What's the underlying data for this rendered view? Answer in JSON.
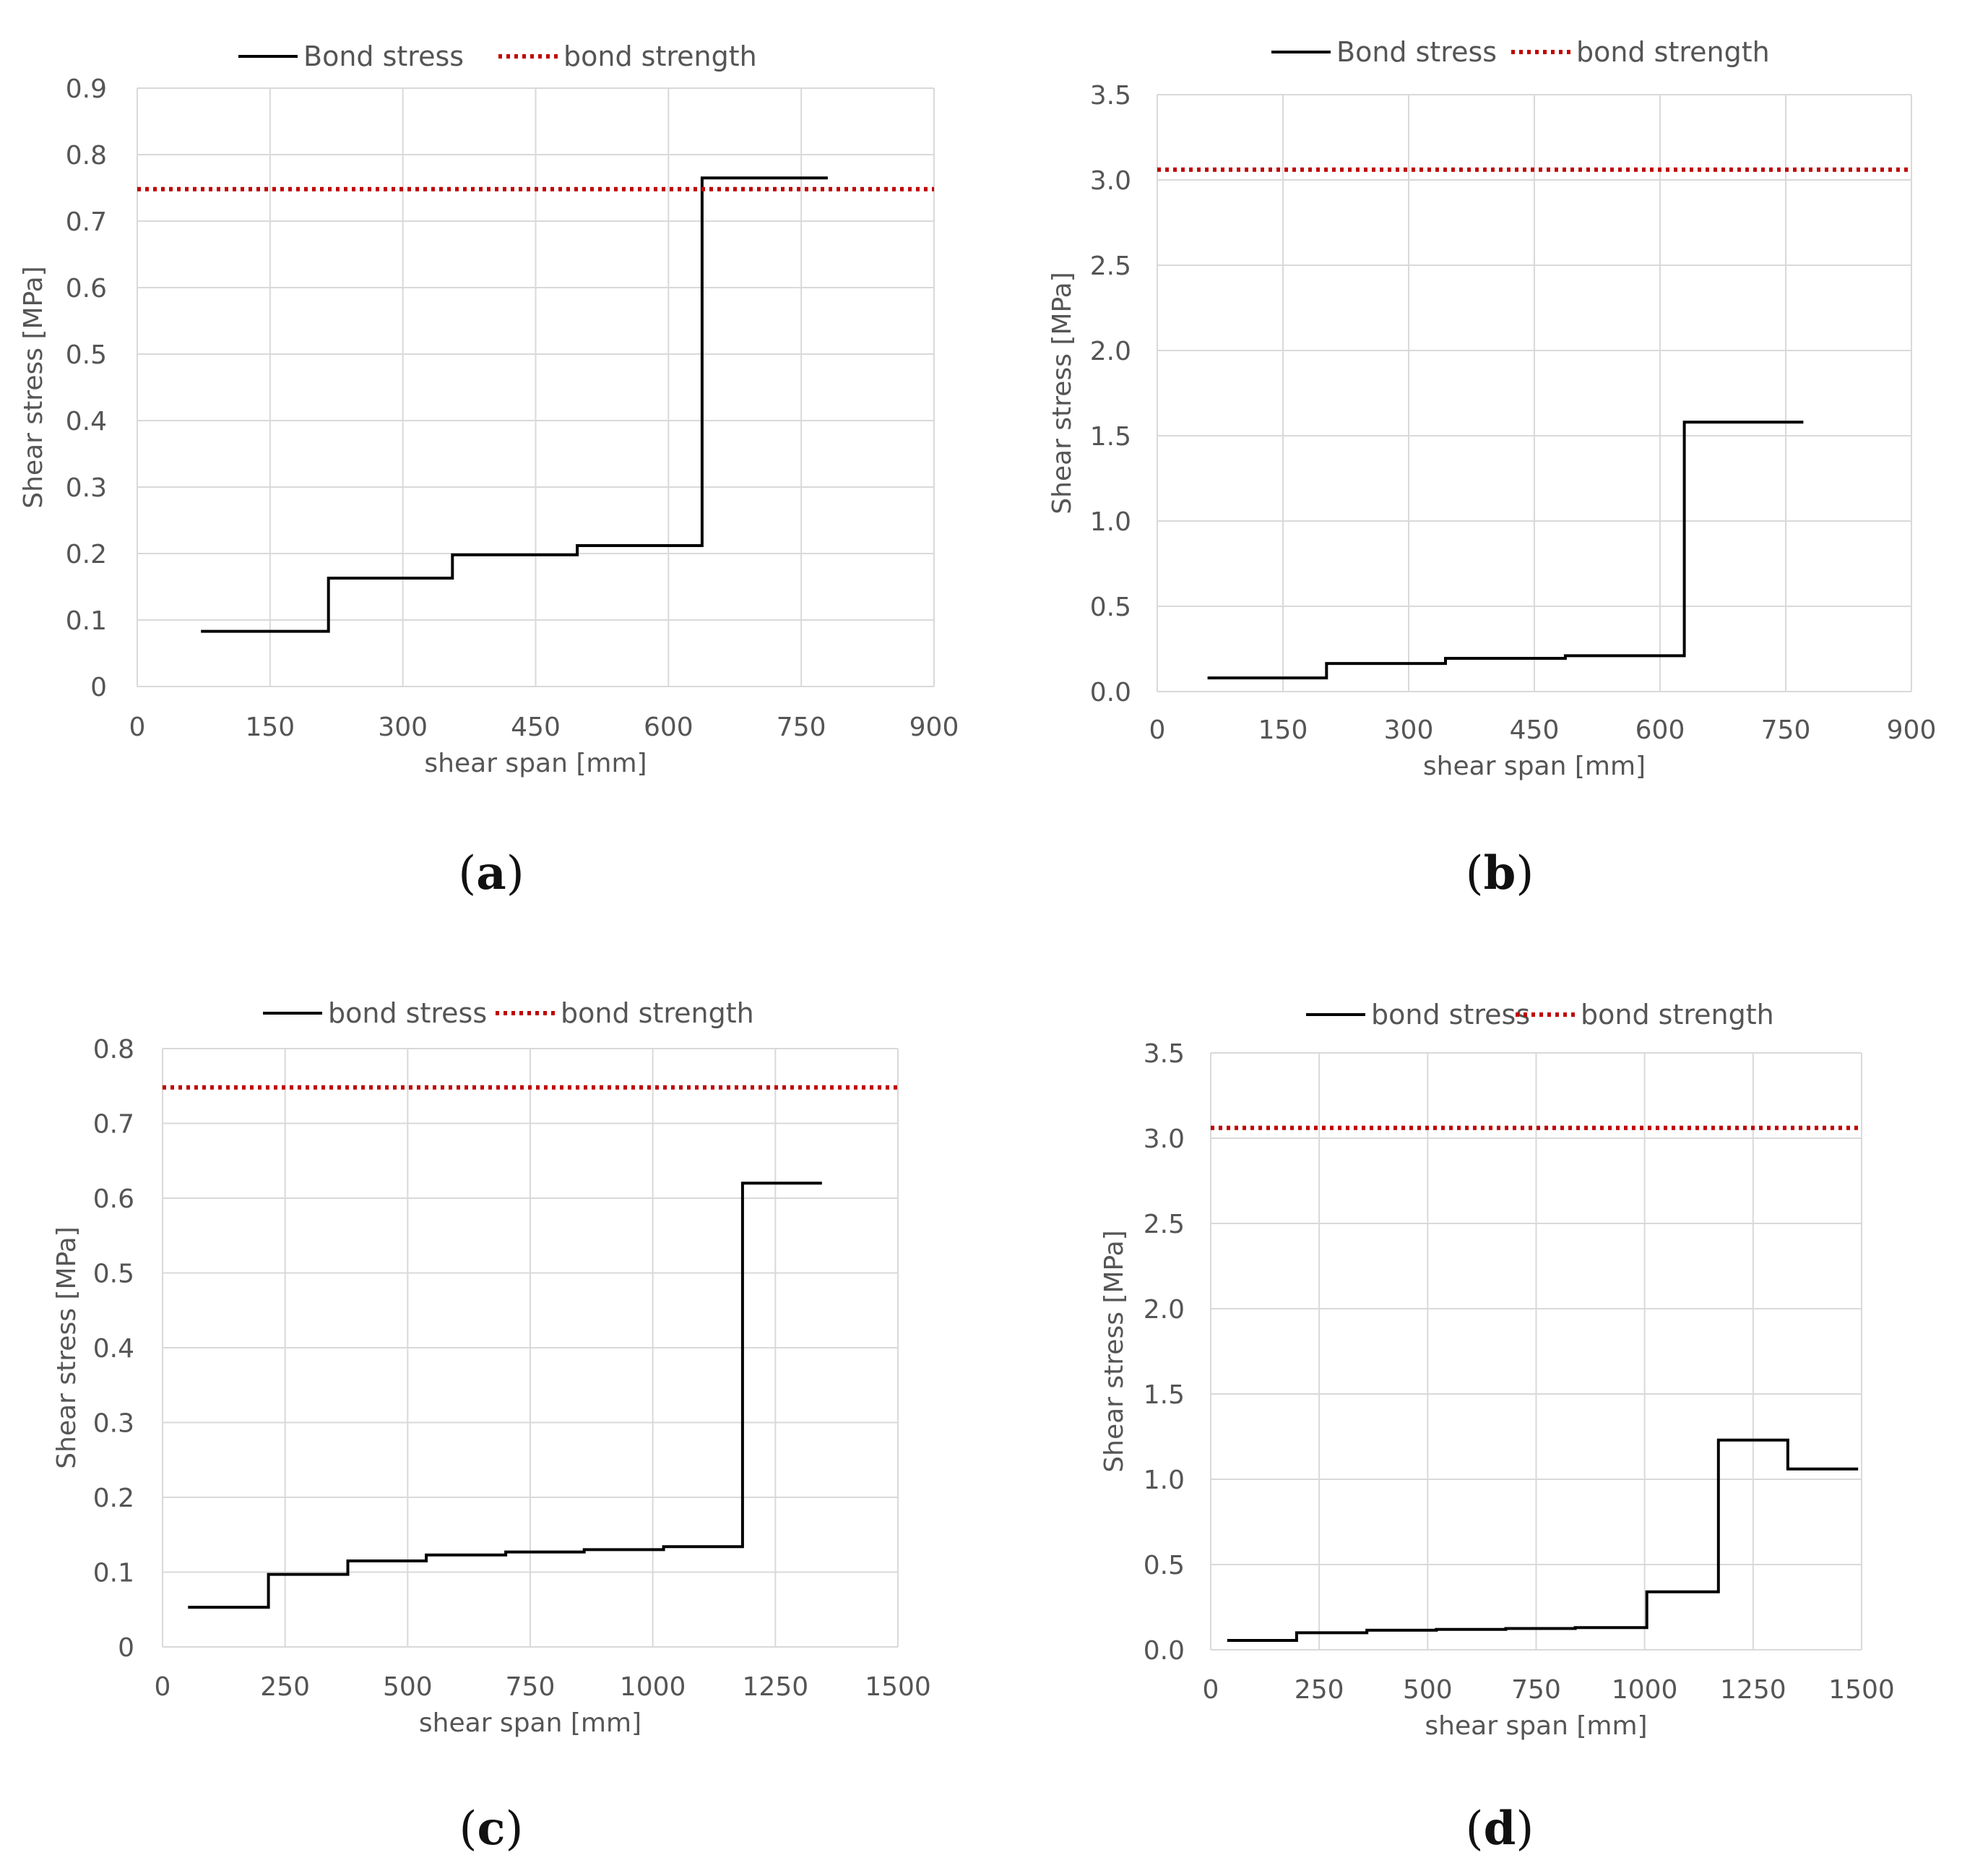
{
  "chart_data": [
    {
      "type": "line",
      "panel_label_open": "(",
      "panel_letter": "a",
      "panel_label_close": ")",
      "xlabel": "shear span [mm]",
      "ylabel": "Shear stress [MPa]",
      "xlim": [
        0,
        900
      ],
      "ylim": [
        0,
        0.9
      ],
      "xticks": [
        0,
        150,
        300,
        450,
        600,
        750,
        900
      ],
      "xtick_labels": [
        "0",
        "150",
        "300",
        "450",
        "600",
        "750",
        "900"
      ],
      "yticks": [
        0,
        0.1,
        0.2,
        0.3,
        0.4,
        0.5,
        0.6,
        0.7,
        0.8,
        0.9
      ],
      "ytick_labels": [
        "0",
        "0.1",
        "0.2",
        "0.3",
        "0.4",
        "0.5",
        "0.6",
        "0.7",
        "0.8",
        "0.9"
      ],
      "legend_position": "top-center",
      "series": [
        {
          "name": "Bond stress",
          "style": "solid",
          "color": "#000000",
          "x": [
            72,
            216,
            216,
            356,
            356,
            497,
            497,
            638,
            638,
            780
          ],
          "y": [
            0.083,
            0.083,
            0.163,
            0.163,
            0.198,
            0.198,
            0.212,
            0.212,
            0.765,
            0.765
          ]
        },
        {
          "name": "bond strength",
          "style": "dotted",
          "color": "#c00000",
          "x": [
            0,
            900
          ],
          "y": [
            0.748,
            0.748
          ]
        }
      ]
    },
    {
      "type": "line",
      "panel_label_open": "(",
      "panel_letter": "b",
      "panel_label_close": ")",
      "xlabel": "shear span [mm]",
      "ylabel": "Shear stress [MPa]",
      "xlim": [
        0,
        900
      ],
      "ylim": [
        0,
        3.5
      ],
      "xticks": [
        0,
        150,
        300,
        450,
        600,
        750,
        900
      ],
      "xtick_labels": [
        "0",
        "150",
        "300",
        "450",
        "600",
        "750",
        "900"
      ],
      "yticks": [
        0,
        0.5,
        1.0,
        1.5,
        2.0,
        2.5,
        3.0,
        3.5
      ],
      "ytick_labels": [
        "0.0",
        "0.5",
        "1.0",
        "1.5",
        "2.0",
        "2.5",
        "3.0",
        "3.5"
      ],
      "legend_position": "top-center",
      "series": [
        {
          "name": "Bond stress",
          "style": "solid",
          "color": "#000000",
          "x": [
            60,
            202,
            202,
            344,
            344,
            487,
            487,
            629,
            629,
            771
          ],
          "y": [
            0.08,
            0.08,
            0.165,
            0.165,
            0.195,
            0.195,
            0.21,
            0.21,
            1.58,
            1.58
          ]
        },
        {
          "name": "bond strength",
          "style": "dotted",
          "color": "#c00000",
          "x": [
            0,
            900
          ],
          "y": [
            3.06,
            3.06
          ]
        }
      ]
    },
    {
      "type": "line",
      "panel_label_open": "(",
      "panel_letter": "c",
      "panel_label_close": ")",
      "xlabel": "shear span [mm]",
      "ylabel": "Shear stress [MPa]",
      "xlim": [
        0,
        1500
      ],
      "ylim": [
        0,
        0.8
      ],
      "xticks": [
        0,
        250,
        500,
        750,
        1000,
        1250,
        1500
      ],
      "xtick_labels": [
        "0",
        "250",
        "500",
        "750",
        "1000",
        "1250",
        "1500"
      ],
      "yticks": [
        0,
        0.1,
        0.2,
        0.3,
        0.4,
        0.5,
        0.6,
        0.7,
        0.8
      ],
      "ytick_labels": [
        "0",
        "0.1",
        "0.2",
        "0.3",
        "0.4",
        "0.5",
        "0.6",
        "0.7",
        "0.8"
      ],
      "legend_position": "top-center",
      "series": [
        {
          "name": "bond stress",
          "style": "solid",
          "color": "#000000",
          "x": [
            52,
            216,
            216,
            378,
            378,
            538,
            538,
            700,
            700,
            860,
            860,
            1022,
            1022,
            1183,
            1183,
            1345
          ],
          "y": [
            0.053,
            0.053,
            0.097,
            0.097,
            0.115,
            0.115,
            0.123,
            0.123,
            0.127,
            0.127,
            0.13,
            0.13,
            0.134,
            0.134,
            0.62,
            0.62
          ]
        },
        {
          "name": "bond strength",
          "style": "dotted",
          "color": "#c00000",
          "x": [
            0,
            1500
          ],
          "y": [
            0.748,
            0.748
          ]
        }
      ]
    },
    {
      "type": "line",
      "panel_label_open": "(",
      "panel_letter": "d",
      "panel_label_close": ")",
      "xlabel": "shear span [mm]",
      "ylabel": "Shear stress [MPa]",
      "xlim": [
        0,
        1500
      ],
      "ylim": [
        0,
        3.5
      ],
      "xticks": [
        0,
        250,
        500,
        750,
        1000,
        1250,
        1500
      ],
      "xtick_labels": [
        "0",
        "250",
        "500",
        "750",
        "1000",
        "1250",
        "1500"
      ],
      "yticks": [
        0,
        0.5,
        1.0,
        1.5,
        2.0,
        2.5,
        3.0,
        3.5
      ],
      "ytick_labels": [
        "0.0",
        "0.5",
        "1.0",
        "1.5",
        "2.0",
        "2.5",
        "3.0",
        "3.5"
      ],
      "legend_position": "top-center",
      "series": [
        {
          "name": "bond stress",
          "style": "solid",
          "color": "#000000",
          "x": [
            38,
            198,
            198,
            360,
            360,
            520,
            520,
            680,
            680,
            840,
            840,
            1005,
            1005,
            1170,
            1170,
            1330,
            1330,
            1492
          ],
          "y": [
            0.055,
            0.055,
            0.1,
            0.1,
            0.115,
            0.115,
            0.12,
            0.12,
            0.125,
            0.125,
            0.13,
            0.13,
            0.34,
            0.34,
            1.23,
            1.23,
            1.06,
            1.06
          ]
        },
        {
          "name": "bond strength",
          "style": "dotted",
          "color": "#c00000",
          "x": [
            0,
            1500
          ],
          "y": [
            3.06,
            3.06
          ]
        }
      ]
    }
  ]
}
